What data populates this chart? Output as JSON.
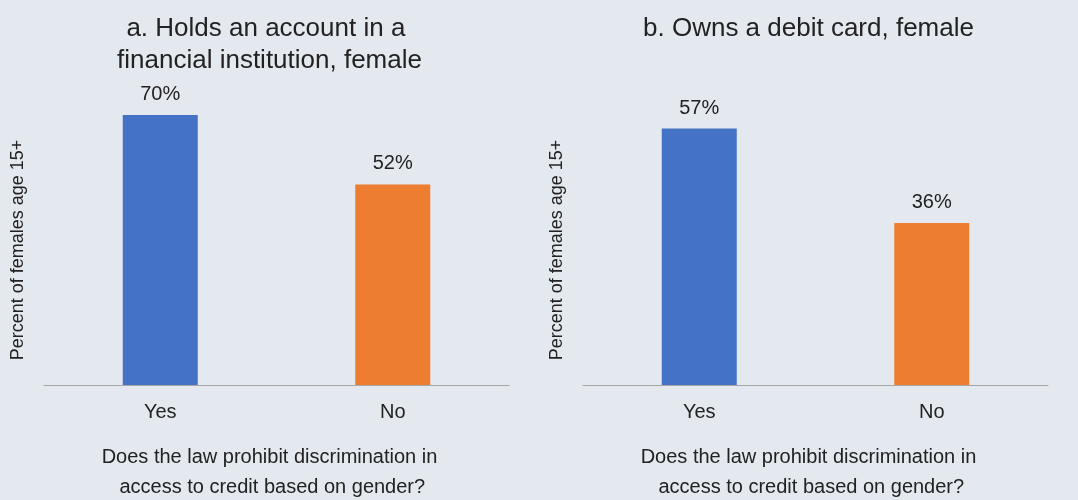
{
  "chart_data": [
    {
      "type": "bar",
      "title": "a. Holds an account in a financial institution, female",
      "categories": [
        "Yes",
        "No"
      ],
      "values": [
        70,
        52
      ],
      "colors": [
        "#4472c4",
        "#ed7d31"
      ],
      "value_labels": [
        "70%",
        "52%"
      ],
      "ylabel": "Percent of females age 15+",
      "xlabel": "Does the law prohibit discrimination in access to credit based on gender?"
    },
    {
      "type": "bar",
      "title": "b. Owns a debit card, female",
      "categories": [
        "Yes",
        "No"
      ],
      "values": [
        57,
        36
      ],
      "colors": [
        "#4472c4",
        "#ed7d31"
      ],
      "value_labels": [
        "57%",
        "36%"
      ],
      "ylabel": "Percent of females age 15+",
      "xlabel": "Does the law prohibit discrimination in access to credit based on gender?"
    }
  ]
}
